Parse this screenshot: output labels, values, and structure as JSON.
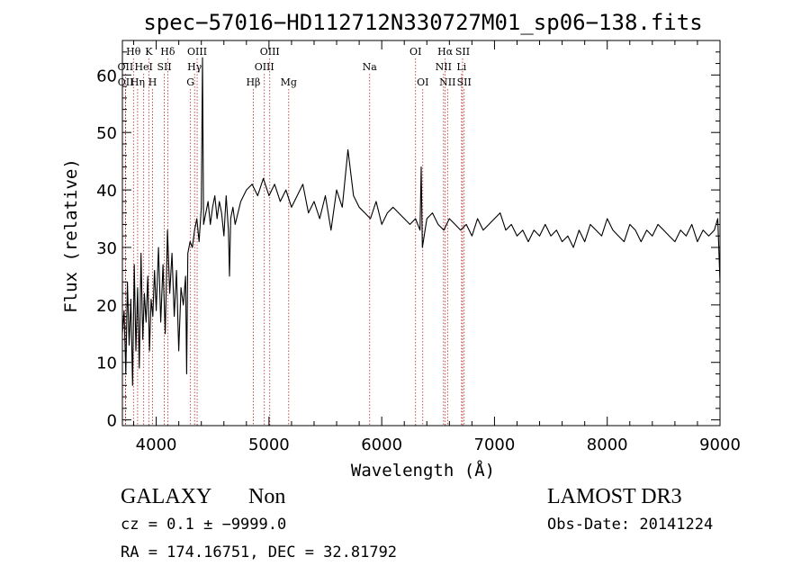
{
  "title": "spec−57016−HD112712N330727M01_sp06−138.fits",
  "footer": {
    "object_class": "GALAXY",
    "subclass": "Non",
    "cz_line": "cz = 0.1 ± −9999.0",
    "coords_line": "RA = 174.16751, DEC =  32.81792",
    "survey": "LAMOST DR3",
    "obs_date": "Obs-Date: 20141224"
  },
  "colors": {
    "spectrum": "#000000",
    "line_markers": "#b22222",
    "axes": "#000000"
  },
  "chart_data": {
    "type": "line",
    "title": "spec−57016−HD112712N330727M01_sp06−138.fits",
    "xlabel": "Wavelength (Å)",
    "ylabel": "Flux (relative)",
    "xlim": [
      3700,
      9000
    ],
    "ylim": [
      -1,
      66
    ],
    "x_ticks": [
      4000,
      5000,
      6000,
      7000,
      8000,
      9000
    ],
    "y_ticks": [
      0,
      10,
      20,
      30,
      40,
      50,
      60
    ],
    "grid": false,
    "legend": "none",
    "series": [
      {
        "x": [
          3700,
          3715,
          3730,
          3745,
          3760,
          3775,
          3790,
          3805,
          3820,
          3835,
          3850,
          3865,
          3880,
          3895,
          3910,
          3925,
          3940,
          3955,
          3970,
          3985,
          4000,
          4020,
          4040,
          4060,
          4080,
          4100,
          4120,
          4140,
          4160,
          4180,
          4200,
          4220,
          4240,
          4260,
          4270,
          4280,
          4300,
          4320,
          4340,
          4360,
          4380,
          4400,
          4410,
          4420,
          4440,
          4460,
          4480,
          4500,
          4520,
          4540,
          4560,
          4580,
          4600,
          4620,
          4640,
          4650,
          4660,
          4680,
          4700,
          4750,
          4800,
          4850,
          4900,
          4950,
          5000,
          5050,
          5100,
          5150,
          5200,
          5250,
          5300,
          5350,
          5400,
          5450,
          5500,
          5550,
          5600,
          5650,
          5700,
          5750,
          5800,
          5850,
          5900,
          5950,
          6000,
          6050,
          6100,
          6150,
          6200,
          6250,
          6300,
          6340,
          6350,
          6360,
          6400,
          6450,
          6500,
          6550,
          6600,
          6650,
          6700,
          6750,
          6800,
          6850,
          6900,
          6950,
          7000,
          7050,
          7100,
          7150,
          7200,
          7250,
          7300,
          7350,
          7400,
          7450,
          7500,
          7550,
          7600,
          7650,
          7700,
          7750,
          7800,
          7850,
          7900,
          7950,
          8000,
          8050,
          8100,
          8150,
          8200,
          8250,
          8300,
          8350,
          8400,
          8450,
          8500,
          8550,
          8600,
          8650,
          8700,
          8750,
          8800,
          8850,
          8900,
          8950,
          8980,
          9000
        ],
        "y": [
          15,
          19,
          8,
          24,
          13,
          21,
          6,
          27,
          12,
          23,
          9,
          29,
          14,
          22,
          17,
          25,
          12,
          21,
          18,
          26,
          19,
          30,
          17,
          27,
          15,
          33,
          22,
          29,
          18,
          26,
          12,
          23,
          20,
          25,
          8,
          29,
          31,
          30,
          33,
          35,
          31,
          37,
          63,
          34,
          36,
          38,
          34,
          37,
          39,
          35,
          38,
          36,
          32,
          39,
          33,
          25,
          35,
          37,
          34,
          38,
          40,
          41,
          39,
          42,
          39,
          41,
          38,
          40,
          37,
          39,
          41,
          36,
          38,
          35,
          39,
          33,
          40,
          37,
          47,
          39,
          37,
          36,
          35,
          38,
          34,
          36,
          37,
          36,
          35,
          34,
          35,
          33,
          44,
          30,
          35,
          36,
          34,
          33,
          35,
          34,
          33,
          34,
          32,
          35,
          33,
          34,
          35,
          36,
          33,
          34,
          32,
          33,
          31,
          33,
          32,
          34,
          32,
          33,
          31,
          32,
          30,
          33,
          31,
          34,
          33,
          32,
          35,
          33,
          32,
          31,
          34,
          33,
          31,
          33,
          32,
          34,
          33,
          32,
          31,
          33,
          32,
          34,
          31,
          33,
          32,
          33,
          35,
          24
        ]
      }
    ],
    "line_markers": [
      {
        "label": "OII",
        "wavelength": 3727,
        "row": 1
      },
      {
        "label": "OII",
        "wavelength": 3729,
        "row": 2
      },
      {
        "label": "Hθ",
        "wavelength": 3798,
        "row": 0
      },
      {
        "label": "HeI",
        "wavelength": 3889,
        "row": 1
      },
      {
        "label": "Hη",
        "wavelength": 3835,
        "row": 2
      },
      {
        "label": "K",
        "wavelength": 3934,
        "row": 0
      },
      {
        "label": "H",
        "wavelength": 3968,
        "row": 2
      },
      {
        "label": "Hδ",
        "wavelength": 4102,
        "row": 0
      },
      {
        "label": "SII",
        "wavelength": 4072,
        "row": 1
      },
      {
        "label": "OIII",
        "wavelength": 4363,
        "row": 0
      },
      {
        "label": "Hγ",
        "wavelength": 4340,
        "row": 1
      },
      {
        "label": "G",
        "wavelength": 4304,
        "row": 2
      },
      {
        "label": "Hβ",
        "wavelength": 4861,
        "row": 2
      },
      {
        "label": "OIII",
        "wavelength": 5007,
        "row": 0
      },
      {
        "label": "OIII",
        "wavelength": 4959,
        "row": 1
      },
      {
        "label": "Mg",
        "wavelength": 5175,
        "row": 2
      },
      {
        "label": "Na",
        "wavelength": 5893,
        "row": 1
      },
      {
        "label": "OI",
        "wavelength": 6300,
        "row": 0
      },
      {
        "label": "OI",
        "wavelength": 6364,
        "row": 2
      },
      {
        "label": "Hα",
        "wavelength": 6563,
        "row": 0
      },
      {
        "label": "NII",
        "wavelength": 6548,
        "row": 1
      },
      {
        "label": "NII",
        "wavelength": 6584,
        "row": 2
      },
      {
        "label": "SII",
        "wavelength": 6717,
        "row": 0
      },
      {
        "label": "Li",
        "wavelength": 6708,
        "row": 1
      },
      {
        "label": "SII",
        "wavelength": 6731,
        "row": 2
      }
    ]
  }
}
